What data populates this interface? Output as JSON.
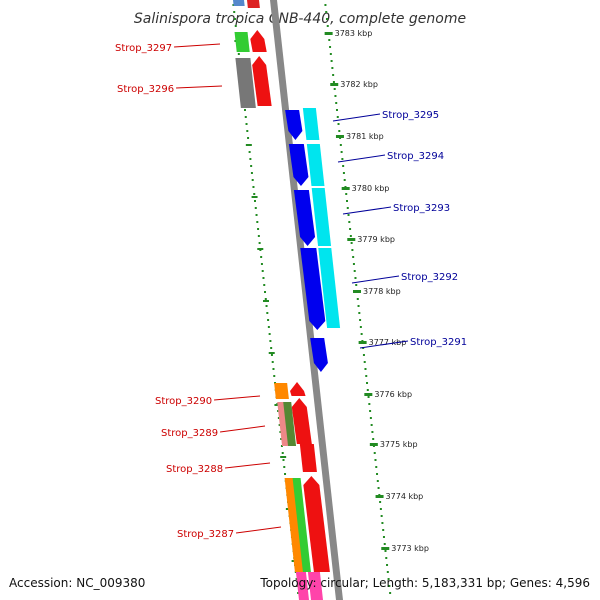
{
  "title": "Salinispora tropica CNB-440, complete genome",
  "accession_text": "Accession: NC_009380",
  "summary_text": "Topology: circular; Length: 5,183,331 bp; Genes: 4,596",
  "colors": {
    "reverse_label": "#cc0000",
    "forward_label": "#000099",
    "tick": "#228b22",
    "backbone": "#888888"
  },
  "ticks": [
    {
      "label": "3783 kbp"
    },
    {
      "label": "3782 kbp"
    },
    {
      "label": "3781 kbp"
    },
    {
      "label": "3780 kbp"
    },
    {
      "label": "3779 kbp"
    },
    {
      "label": "3778 kbp"
    },
    {
      "label": "3777 kbp"
    },
    {
      "label": "3776 kbp"
    },
    {
      "label": "3775 kbp"
    },
    {
      "label": "3774 kbp"
    },
    {
      "label": "3773 kbp"
    }
  ],
  "reverse_genes": [
    {
      "label": "Strop_3297"
    },
    {
      "label": "Strop_3296"
    },
    {
      "label": "Strop_3290"
    },
    {
      "label": "Strop_3289"
    },
    {
      "label": "Strop_3288"
    },
    {
      "label": "Strop_3287"
    }
  ],
  "forward_genes": [
    {
      "label": "Strop_3295"
    },
    {
      "label": "Strop_3294"
    },
    {
      "label": "Strop_3293"
    },
    {
      "label": "Strop_3292"
    },
    {
      "label": "Strop_3291"
    }
  ]
}
